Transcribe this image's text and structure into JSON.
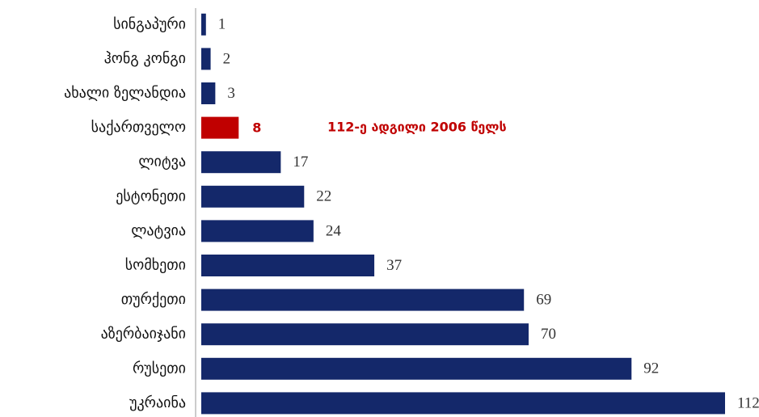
{
  "chart_data": {
    "type": "bar",
    "orientation": "horizontal",
    "categories": [
      "სინგაპური",
      "ჰონგ კონგი",
      "ახალი ზელანდია",
      "საქართველო",
      "ლიტვა",
      "ესტონეთი",
      "ლატვია",
      "სომხეთი",
      "თურქეთი",
      "აზერბაიჯანი",
      "რუსეთი",
      "უკრაინა"
    ],
    "values": [
      1,
      2,
      3,
      8,
      17,
      22,
      24,
      37,
      69,
      70,
      92,
      112
    ],
    "color": "#14286a",
    "colors": [
      "#14286a",
      "#14286a",
      "#14286a",
      "#c00000",
      "#14286a",
      "#14286a",
      "#14286a",
      "#14286a",
      "#14286a",
      "#14286a",
      "#14286a",
      "#14286a"
    ],
    "annotation": "112-ე ადგილი 2006 წელს",
    "xlim": [
      0,
      112
    ]
  }
}
